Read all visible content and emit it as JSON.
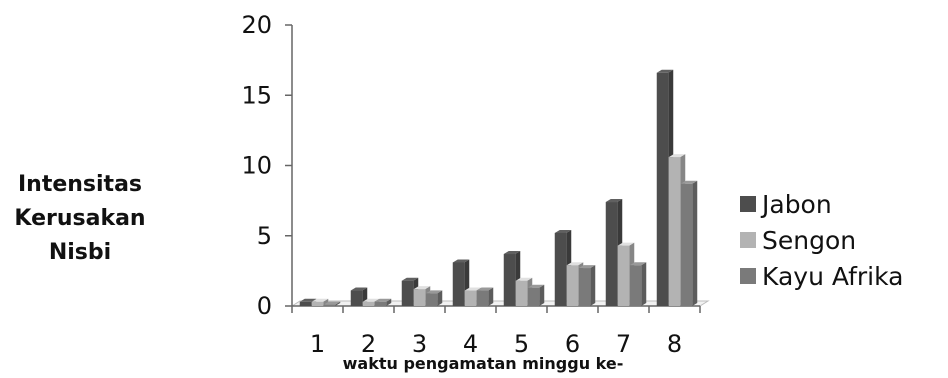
{
  "chart_data": {
    "type": "bar",
    "ylabel_lines": [
      "Intensitas",
      "Kerusakan",
      "Nisbi"
    ],
    "xlabel": "waktu pengamatan minggu ke-",
    "categories": [
      "1",
      "2",
      "3",
      "4",
      "5",
      "6",
      "7",
      "8"
    ],
    "ylim": [
      0,
      20
    ],
    "yticks": [
      "0",
      "5",
      "10",
      "15",
      "20"
    ],
    "grid": false,
    "legend_position": "right",
    "series": [
      {
        "name": "Jabon",
        "color": "#4d4d4d",
        "values": [
          0.3,
          1.1,
          1.8,
          3.1,
          3.7,
          5.2,
          7.4,
          16.6
        ]
      },
      {
        "name": "Sengon",
        "color": "#b3b3b3",
        "values": [
          0.3,
          0.3,
          1.2,
          1.1,
          1.8,
          2.9,
          4.3,
          10.6
        ]
      },
      {
        "name": "Kayu Afrika",
        "color": "#7a7a7a",
        "values": [
          0.1,
          0.3,
          0.9,
          1.1,
          1.3,
          2.7,
          2.9,
          8.7
        ]
      }
    ]
  }
}
